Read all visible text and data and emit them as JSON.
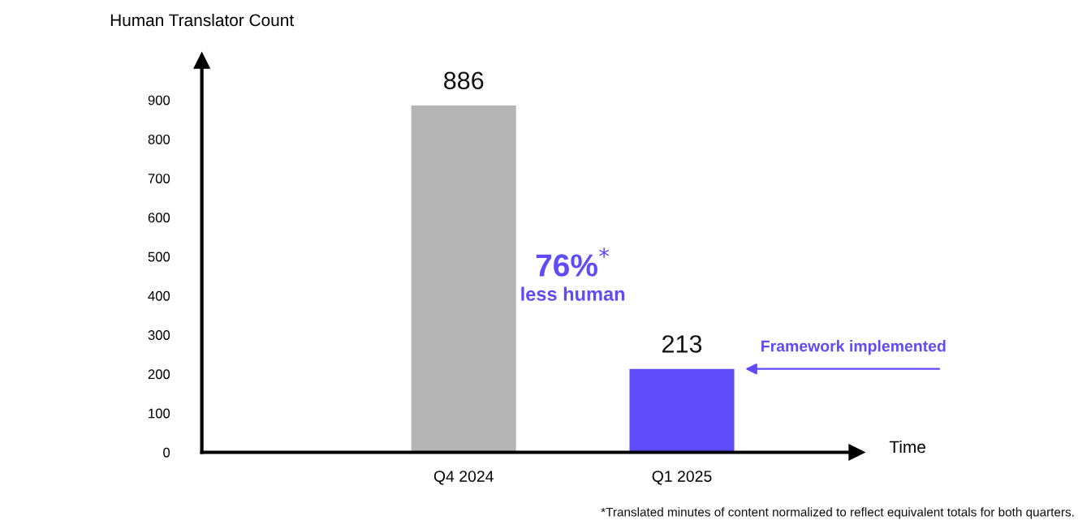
{
  "chart_data": {
    "type": "bar",
    "ylabel": "Human Translator Count",
    "xlabel": "Time",
    "categories": [
      "Q4 2024",
      "Q1 2025"
    ],
    "values": [
      886,
      213
    ],
    "colors": [
      "#b5b5b5",
      "#5f4bf7"
    ],
    "ylim": [
      0,
      1000
    ],
    "yticks": [
      0,
      100,
      200,
      300,
      400,
      500,
      600,
      700,
      800,
      900
    ],
    "data_labels": true,
    "grid": false,
    "legend": false,
    "annotations": [
      "76%$^{*}$",
      "less human",
      "Framework implemented",
      "*Translated minutes of content normalized to reflect equivalent totals for both quarters."
    ]
  }
}
